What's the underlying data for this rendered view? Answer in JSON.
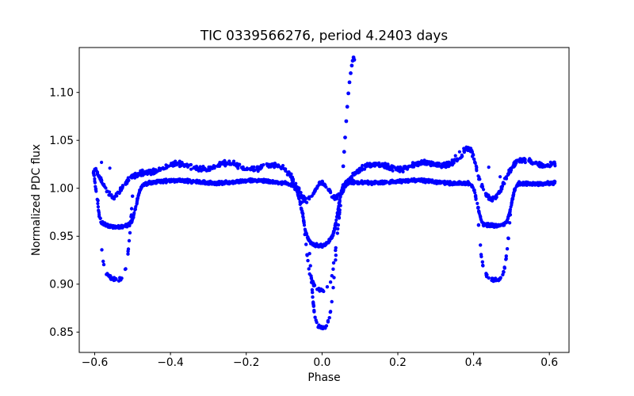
{
  "chart_data": {
    "type": "scatter",
    "title": "TIC 0339566276, period 4.2403 days",
    "xlabel": "Phase",
    "ylabel": "Normalized PDC flux",
    "xlim": [
      -0.6408,
      0.6518
    ],
    "ylim": [
      0.8288,
      1.1468
    ],
    "grid": false,
    "legend": null,
    "marker_color": "#0000ff",
    "xticks": {
      "values": [
        -0.6,
        -0.4,
        -0.2,
        0.0,
        0.2,
        0.4,
        0.6
      ],
      "labels": [
        "−0.6",
        "−0.4",
        "−0.2",
        "0.0",
        "0.2",
        "0.4",
        "0.6"
      ]
    },
    "yticks": {
      "values": [
        0.85,
        0.9,
        0.95,
        1.0,
        1.05,
        1.1
      ],
      "labels": [
        "0.85",
        "0.90",
        "0.95",
        "1.00",
        "1.05",
        "1.10"
      ]
    },
    "series": [
      {
        "name": "baseline-dense",
        "kind": "band",
        "n": 1700,
        "r": 2.1,
        "jitter": 0.002,
        "range": [
          -0.605,
          0.615
        ],
        "wiggle": {
          "amp": 0.0012,
          "period": 0.21,
          "phase": 0.5
        },
        "anchors": [
          [
            -0.605,
            1.02
          ],
          [
            -0.601,
            1.01
          ],
          [
            -0.597,
            0.998
          ],
          [
            -0.592,
            0.982
          ],
          [
            -0.587,
            0.968
          ],
          [
            -0.582,
            0.9625
          ],
          [
            -0.565,
            0.96
          ],
          [
            -0.545,
            0.9595
          ],
          [
            -0.525,
            0.9605
          ],
          [
            -0.508,
            0.9635
          ],
          [
            -0.5,
            0.9685
          ],
          [
            -0.493,
            0.979
          ],
          [
            -0.486,
            0.992
          ],
          [
            -0.479,
            1.001
          ],
          [
            -0.472,
            1.005
          ],
          [
            -0.455,
            1.0065
          ],
          [
            -0.4,
            1.007
          ],
          [
            -0.35,
            1.0068
          ],
          [
            -0.3,
            1.0065
          ],
          [
            -0.25,
            1.0068
          ],
          [
            -0.2,
            1.007
          ],
          [
            -0.15,
            1.0066
          ],
          [
            -0.1,
            1.0062
          ],
          [
            -0.078,
            1.005
          ],
          [
            -0.068,
            1.0
          ],
          [
            -0.06,
            0.99
          ],
          [
            -0.052,
            0.975
          ],
          [
            -0.045,
            0.959
          ],
          [
            -0.038,
            0.949
          ],
          [
            -0.03,
            0.9435
          ],
          [
            -0.018,
            0.9405
          ],
          [
            -0.005,
            0.9395
          ],
          [
            0.006,
            0.94
          ],
          [
            0.016,
            0.9425
          ],
          [
            0.024,
            0.9465
          ],
          [
            0.031,
            0.953
          ],
          [
            0.037,
            0.963
          ],
          [
            0.043,
            0.978
          ],
          [
            0.05,
            0.994
          ],
          [
            0.057,
            1.002
          ],
          [
            0.065,
            1.0055
          ],
          [
            0.09,
            1.0065
          ],
          [
            0.15,
            1.007
          ],
          [
            0.2,
            1.0068
          ],
          [
            0.25,
            1.007
          ],
          [
            0.3,
            1.0067
          ],
          [
            0.35,
            1.0065
          ],
          [
            0.385,
            1.006
          ],
          [
            0.395,
            1.0035
          ],
          [
            0.402,
            0.997
          ],
          [
            0.408,
            0.987
          ],
          [
            0.414,
            0.975
          ],
          [
            0.42,
            0.9655
          ],
          [
            0.426,
            0.9615
          ],
          [
            0.445,
            0.96
          ],
          [
            0.465,
            0.96
          ],
          [
            0.48,
            0.9615
          ],
          [
            0.488,
            0.965
          ],
          [
            0.494,
            0.972
          ],
          [
            0.5,
            0.983
          ],
          [
            0.506,
            0.995
          ],
          [
            0.512,
            1.003
          ],
          [
            0.52,
            1.0055
          ],
          [
            0.55,
            1.0058
          ],
          [
            0.58,
            1.0055
          ],
          [
            0.615,
            1.0058
          ]
        ]
      },
      {
        "name": "upper-wavy",
        "kind": "band",
        "n": 950,
        "r": 2.1,
        "jitter": 0.0032,
        "range": [
          -0.602,
          0.615
        ],
        "wiggle": {
          "amp": 0.0028,
          "period": 0.13,
          "phase": 1.2
        },
        "anchors": [
          [
            -0.602,
            1.024
          ],
          [
            -0.59,
            1.016
          ],
          [
            -0.578,
            1.008
          ],
          [
            -0.568,
            1.0
          ],
          [
            -0.556,
            0.9925
          ],
          [
            -0.547,
            0.9905
          ],
          [
            -0.538,
            0.994
          ],
          [
            -0.525,
            1.0
          ],
          [
            -0.512,
            1.006
          ],
          [
            -0.498,
            1.011
          ],
          [
            -0.48,
            1.016
          ],
          [
            -0.46,
            1.019
          ],
          [
            -0.42,
            1.0215
          ],
          [
            -0.36,
            1.0235
          ],
          [
            -0.3,
            1.0225
          ],
          [
            -0.24,
            1.0235
          ],
          [
            -0.18,
            1.0225
          ],
          [
            -0.13,
            1.0215
          ],
          [
            -0.1,
            1.0195
          ],
          [
            -0.082,
            1.014
          ],
          [
            -0.066,
            1.004
          ],
          [
            -0.052,
            0.9935
          ],
          [
            -0.04,
            0.9895
          ],
          [
            -0.03,
            0.99
          ],
          [
            -0.018,
            0.997
          ],
          [
            -0.006,
            1.003
          ],
          [
            0.004,
            1.003
          ],
          [
            0.014,
            0.9975
          ],
          [
            0.026,
            0.9905
          ],
          [
            0.036,
            0.9895
          ],
          [
            0.046,
            0.9935
          ],
          [
            0.058,
            1.002
          ],
          [
            0.072,
            1.012
          ],
          [
            0.085,
            1.018
          ],
          [
            0.11,
            1.0215
          ],
          [
            0.16,
            1.0235
          ],
          [
            0.21,
            1.0225
          ],
          [
            0.26,
            1.024
          ],
          [
            0.31,
            1.025
          ],
          [
            0.34,
            1.0285
          ],
          [
            0.365,
            1.033
          ],
          [
            0.383,
            1.0395
          ],
          [
            0.392,
            1.038
          ],
          [
            0.4,
            1.03
          ],
          [
            0.408,
            1.018
          ],
          [
            0.416,
            1.0065
          ],
          [
            0.425,
            0.9985
          ],
          [
            0.436,
            0.993
          ],
          [
            0.447,
            0.9905
          ],
          [
            0.458,
            0.9925
          ],
          [
            0.468,
            0.998
          ],
          [
            0.478,
            1.006
          ],
          [
            0.488,
            1.014
          ],
          [
            0.5,
            1.021
          ],
          [
            0.515,
            1.0255
          ],
          [
            0.54,
            1.0265
          ],
          [
            0.57,
            1.026
          ],
          [
            0.6,
            1.0275
          ],
          [
            0.615,
            1.0275
          ]
        ]
      },
      {
        "name": "deep-primary-medium",
        "kind": "band",
        "n": 55,
        "r": 2.2,
        "jitter": 0.0022,
        "range": [
          -0.056,
          0.056
        ],
        "anchors": [
          [
            -0.056,
            0.995
          ],
          [
            -0.05,
            0.972
          ],
          [
            -0.044,
            0.948
          ],
          [
            -0.039,
            0.928
          ],
          [
            -0.033,
            0.9125
          ],
          [
            -0.026,
            0.902
          ],
          [
            -0.016,
            0.8955
          ],
          [
            -0.004,
            0.893
          ],
          [
            0.006,
            0.894
          ],
          [
            0.015,
            0.8975
          ],
          [
            0.023,
            0.9045
          ],
          [
            0.029,
            0.916
          ],
          [
            0.035,
            0.933
          ],
          [
            0.041,
            0.955
          ],
          [
            0.047,
            0.978
          ],
          [
            0.053,
            0.998
          ],
          [
            0.056,
            1.003
          ]
        ]
      },
      {
        "name": "deep-primary-deepest",
        "kind": "band",
        "n": 42,
        "r": 2.2,
        "jitter": 0.0022,
        "range": [
          -0.033,
          0.04
        ],
        "anchors": [
          [
            -0.033,
            0.932
          ],
          [
            -0.029,
            0.909
          ],
          [
            -0.025,
            0.888
          ],
          [
            -0.021,
            0.872
          ],
          [
            -0.016,
            0.8615
          ],
          [
            -0.009,
            0.856
          ],
          [
            0.0,
            0.8545
          ],
          [
            0.008,
            0.8555
          ],
          [
            0.015,
            0.86
          ],
          [
            0.021,
            0.868
          ],
          [
            0.026,
            0.882
          ],
          [
            0.031,
            0.903
          ],
          [
            0.036,
            0.928
          ],
          [
            0.04,
            0.95
          ]
        ]
      },
      {
        "name": "deep-secondary-left",
        "kind": "band",
        "n": 42,
        "r": 2.2,
        "jitter": 0.0022,
        "range": [
          -0.592,
          -0.5
        ],
        "anchors": [
          [
            -0.592,
            0.99
          ],
          [
            -0.588,
            0.968
          ],
          [
            -0.584,
            0.948
          ],
          [
            -0.58,
            0.931
          ],
          [
            -0.575,
            0.918
          ],
          [
            -0.568,
            0.9105
          ],
          [
            -0.556,
            0.906
          ],
          [
            -0.543,
            0.9045
          ],
          [
            -0.531,
            0.906
          ],
          [
            -0.523,
            0.9105
          ],
          [
            -0.517,
            0.919
          ],
          [
            -0.512,
            0.933
          ],
          [
            -0.507,
            0.953
          ],
          [
            -0.503,
            0.975
          ],
          [
            -0.5,
            0.992
          ]
        ]
      },
      {
        "name": "deep-secondary-right",
        "kind": "band",
        "n": 42,
        "r": 2.2,
        "jitter": 0.0022,
        "range": [
          0.408,
          0.5
        ],
        "anchors": [
          [
            0.408,
            0.99
          ],
          [
            0.412,
            0.968
          ],
          [
            0.416,
            0.948
          ],
          [
            0.42,
            0.931
          ],
          [
            0.425,
            0.918
          ],
          [
            0.432,
            0.9105
          ],
          [
            0.444,
            0.906
          ],
          [
            0.457,
            0.9045
          ],
          [
            0.469,
            0.906
          ],
          [
            0.477,
            0.9105
          ],
          [
            0.483,
            0.919
          ],
          [
            0.488,
            0.933
          ],
          [
            0.493,
            0.953
          ],
          [
            0.497,
            0.975
          ],
          [
            0.5,
            0.992
          ]
        ]
      },
      {
        "name": "flare",
        "kind": "points",
        "r": 2.4,
        "points": [
          [
            0.056,
            1.023
          ],
          [
            0.0585,
            1.038
          ],
          [
            0.061,
            1.053
          ],
          [
            0.0638,
            1.07
          ],
          [
            0.0665,
            1.085
          ],
          [
            0.0695,
            1.099
          ],
          [
            0.0725,
            1.1105
          ],
          [
            0.0755,
            1.12
          ],
          [
            0.0785,
            1.128
          ],
          [
            0.0808,
            1.133
          ],
          [
            0.083,
            1.1365
          ],
          [
            0.085,
            1.134
          ]
        ]
      },
      {
        "name": "outliers",
        "kind": "points",
        "r": 2.1,
        "points": [
          [
            -0.582,
            1.027
          ],
          [
            -0.56,
            1.021
          ],
          [
            0.352,
            1.034
          ],
          [
            0.363,
            1.038
          ],
          [
            0.374,
            1.0415
          ],
          [
            0.381,
            1.043
          ],
          [
            0.44,
            1.022
          ],
          [
            0.47,
            1.012
          ]
        ]
      }
    ]
  }
}
